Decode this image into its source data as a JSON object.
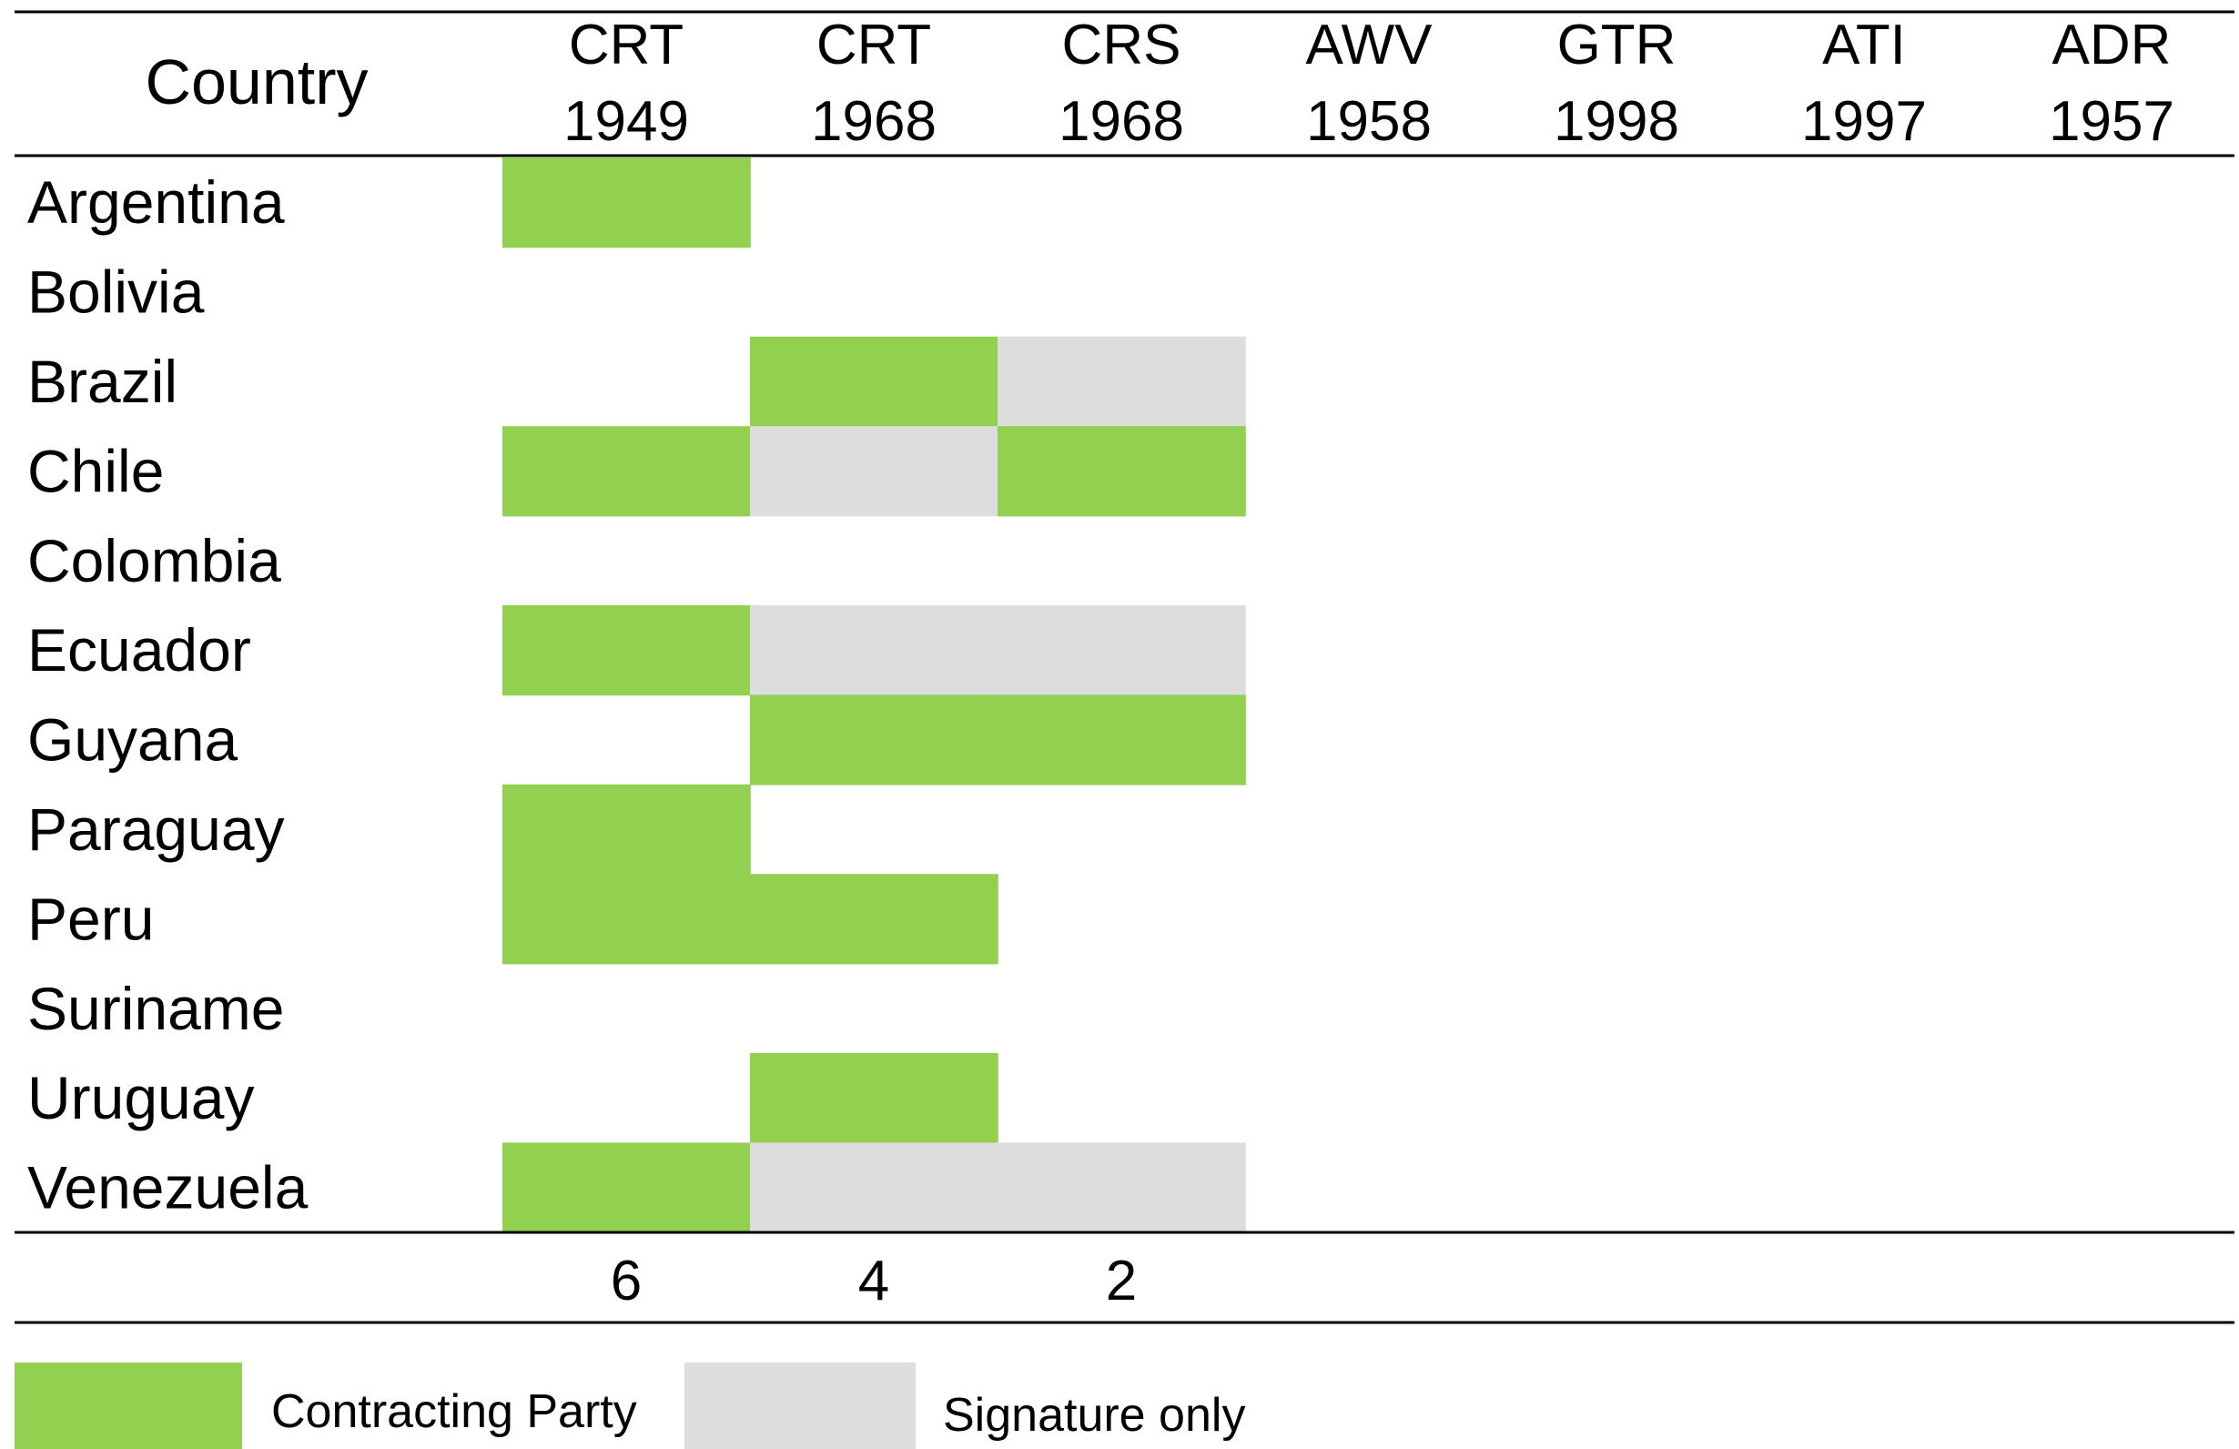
{
  "chart_data": {
    "type": "heatmap",
    "row_header": "Country",
    "columns": [
      {
        "code": "CRT",
        "year": "1949"
      },
      {
        "code": "CRT",
        "year": "1968"
      },
      {
        "code": "CRS",
        "year": "1968"
      },
      {
        "code": "AWV",
        "year": "1958"
      },
      {
        "code": "GTR",
        "year": "1998"
      },
      {
        "code": "ATI",
        "year": "1997"
      },
      {
        "code": "ADR",
        "year": "1957"
      }
    ],
    "rows": [
      {
        "country": "Argentina",
        "status": [
          "contracting",
          "none",
          "none",
          "none",
          "none",
          "none",
          "none"
        ]
      },
      {
        "country": "Bolivia",
        "status": [
          "none",
          "none",
          "none",
          "none",
          "none",
          "none",
          "none"
        ]
      },
      {
        "country": "Brazil",
        "status": [
          "none",
          "contracting",
          "signature",
          "none",
          "none",
          "none",
          "none"
        ]
      },
      {
        "country": "Chile",
        "status": [
          "contracting",
          "signature",
          "contracting",
          "none",
          "none",
          "none",
          "none"
        ]
      },
      {
        "country": "Colombia",
        "status": [
          "none",
          "none",
          "none",
          "none",
          "none",
          "none",
          "none"
        ]
      },
      {
        "country": "Ecuador",
        "status": [
          "contracting",
          "signature",
          "signature",
          "none",
          "none",
          "none",
          "none"
        ]
      },
      {
        "country": "Guyana",
        "status": [
          "none",
          "contracting",
          "contracting",
          "none",
          "none",
          "none",
          "none"
        ]
      },
      {
        "country": "Paraguay",
        "status": [
          "contracting",
          "none",
          "none",
          "none",
          "none",
          "none",
          "none"
        ]
      },
      {
        "country": "Peru",
        "status": [
          "contracting",
          "contracting",
          "none",
          "none",
          "none",
          "none",
          "none"
        ]
      },
      {
        "country": "Suriname",
        "status": [
          "none",
          "none",
          "none",
          "none",
          "none",
          "none",
          "none"
        ]
      },
      {
        "country": "Uruguay",
        "status": [
          "none",
          "contracting",
          "none",
          "none",
          "none",
          "none",
          "none"
        ]
      },
      {
        "country": "Venezuela",
        "status": [
          "contracting",
          "signature",
          "signature",
          "none",
          "none",
          "none",
          "none"
        ]
      }
    ],
    "totals": [
      "6",
      "4",
      "2",
      "",
      "",
      "",
      ""
    ],
    "legend": [
      {
        "key": "contracting",
        "label": "Contracting Party",
        "color": "#92d050"
      },
      {
        "key": "signature",
        "label": "Signature only",
        "color": "#dddddd"
      }
    ]
  }
}
